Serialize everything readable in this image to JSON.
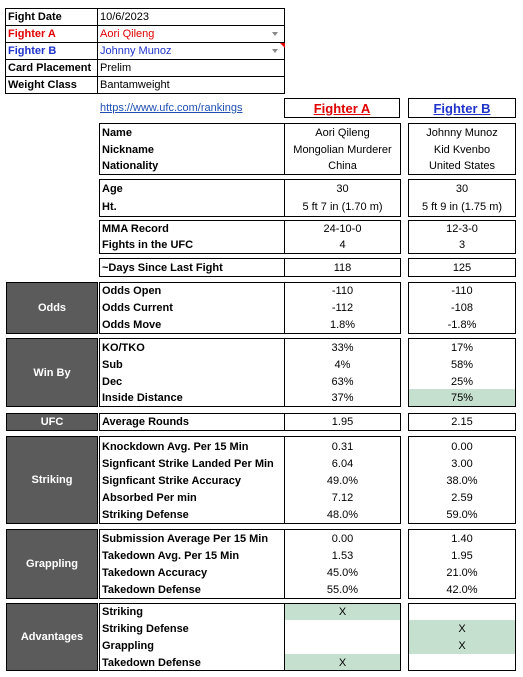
{
  "info": {
    "rows": [
      {
        "label": "Fight Date",
        "value": "10/6/2023"
      },
      {
        "label": "Fighter A",
        "value": "Aori Qileng"
      },
      {
        "label": "Fighter B",
        "value": "Johnny Munoz"
      },
      {
        "label": "Card Placement",
        "value": "Prelim"
      },
      {
        "label": "Weight Class",
        "value": "Bantamweight"
      }
    ]
  },
  "link": "https://www.ufc.com/rankings",
  "header": {
    "a": "Fighter A",
    "b": "Fighter B"
  },
  "profile": {
    "name": {
      "label": "Name",
      "a": "Aori Qileng",
      "b": "Johnny Munoz"
    },
    "nickname": {
      "label": "Nickname",
      "a": "Mongolian Murderer",
      "b": "Kid Kvenbo"
    },
    "nationality": {
      "label": "Nationality",
      "a": "China",
      "b": "United States"
    },
    "age": {
      "label": "Age",
      "a": "30",
      "b": "30"
    },
    "height": {
      "label": "Ht.",
      "a": "5 ft 7 in (1.70 m)",
      "b": "5 ft 9 in (1.75 m)"
    },
    "record": {
      "label": "MMA Record",
      "a": "24-10-0",
      "b": "12-3-0"
    },
    "fights": {
      "label": "Fights in the UFC",
      "a": "4",
      "b": "3"
    },
    "days": {
      "label": "~Days Since Last Fight",
      "a": "118",
      "b": "125"
    }
  },
  "odds": {
    "title": "Odds",
    "rows": [
      {
        "label": "Odds Open",
        "a": "-110",
        "b": "-110"
      },
      {
        "label": "Odds Current",
        "a": "-112",
        "b": "-108"
      },
      {
        "label": "Odds Move",
        "a": "1.8%",
        "b": "-1.8%"
      }
    ]
  },
  "winby": {
    "title": "Win By",
    "rows": [
      {
        "label": "KO/TKO",
        "a": "33%",
        "b": "17%"
      },
      {
        "label": "Sub",
        "a": "4%",
        "b": "58%"
      },
      {
        "label": "Dec",
        "a": "63%",
        "b": "25%"
      },
      {
        "label": "Inside Distance",
        "a": "37%",
        "b": "75%"
      }
    ]
  },
  "ufc": {
    "title": "UFC",
    "label": "Average Rounds",
    "a": "1.95",
    "b": "2.15"
  },
  "striking": {
    "title": "Striking",
    "rows": [
      {
        "label": "Knockdown Avg. Per 15 Min",
        "a": "0.31",
        "b": "0.00"
      },
      {
        "label": "Signficant Strike Landed Per Min",
        "a": "6.04",
        "b": "3.00"
      },
      {
        "label": "Signficant Strike Accuracy",
        "a": "49.0%",
        "b": "38.0%"
      },
      {
        "label": "Absorbed Per min",
        "a": "7.12",
        "b": "2.59"
      },
      {
        "label": "Striking Defense",
        "a": "48.0%",
        "b": "59.0%"
      }
    ]
  },
  "grappling": {
    "title": "Grappling",
    "rows": [
      {
        "label": "Submission Average  Per 15 Min",
        "a": "0.00",
        "b": "1.40"
      },
      {
        "label": "Takedown Avg. Per 15 Min",
        "a": "1.53",
        "b": "1.95"
      },
      {
        "label": "Takedown Accuracy",
        "a": "45.0%",
        "b": "21.0%"
      },
      {
        "label": "Takedown Defense",
        "a": "55.0%",
        "b": "42.0%"
      }
    ]
  },
  "advantages": {
    "title": "Advantages",
    "rows": [
      {
        "label": "Striking",
        "a": "X",
        "b": ""
      },
      {
        "label": "Striking Defense",
        "a": "",
        "b": "X"
      },
      {
        "label": "Grappling",
        "a": "",
        "b": "X"
      },
      {
        "label": "Takedown Defense",
        "a": "X",
        "b": ""
      }
    ]
  },
  "colors": {
    "fighter_a": "#e00000",
    "fighter_b": "#1f33cc",
    "section": "#5b5b5b",
    "advantage": "#c6e0d0"
  }
}
